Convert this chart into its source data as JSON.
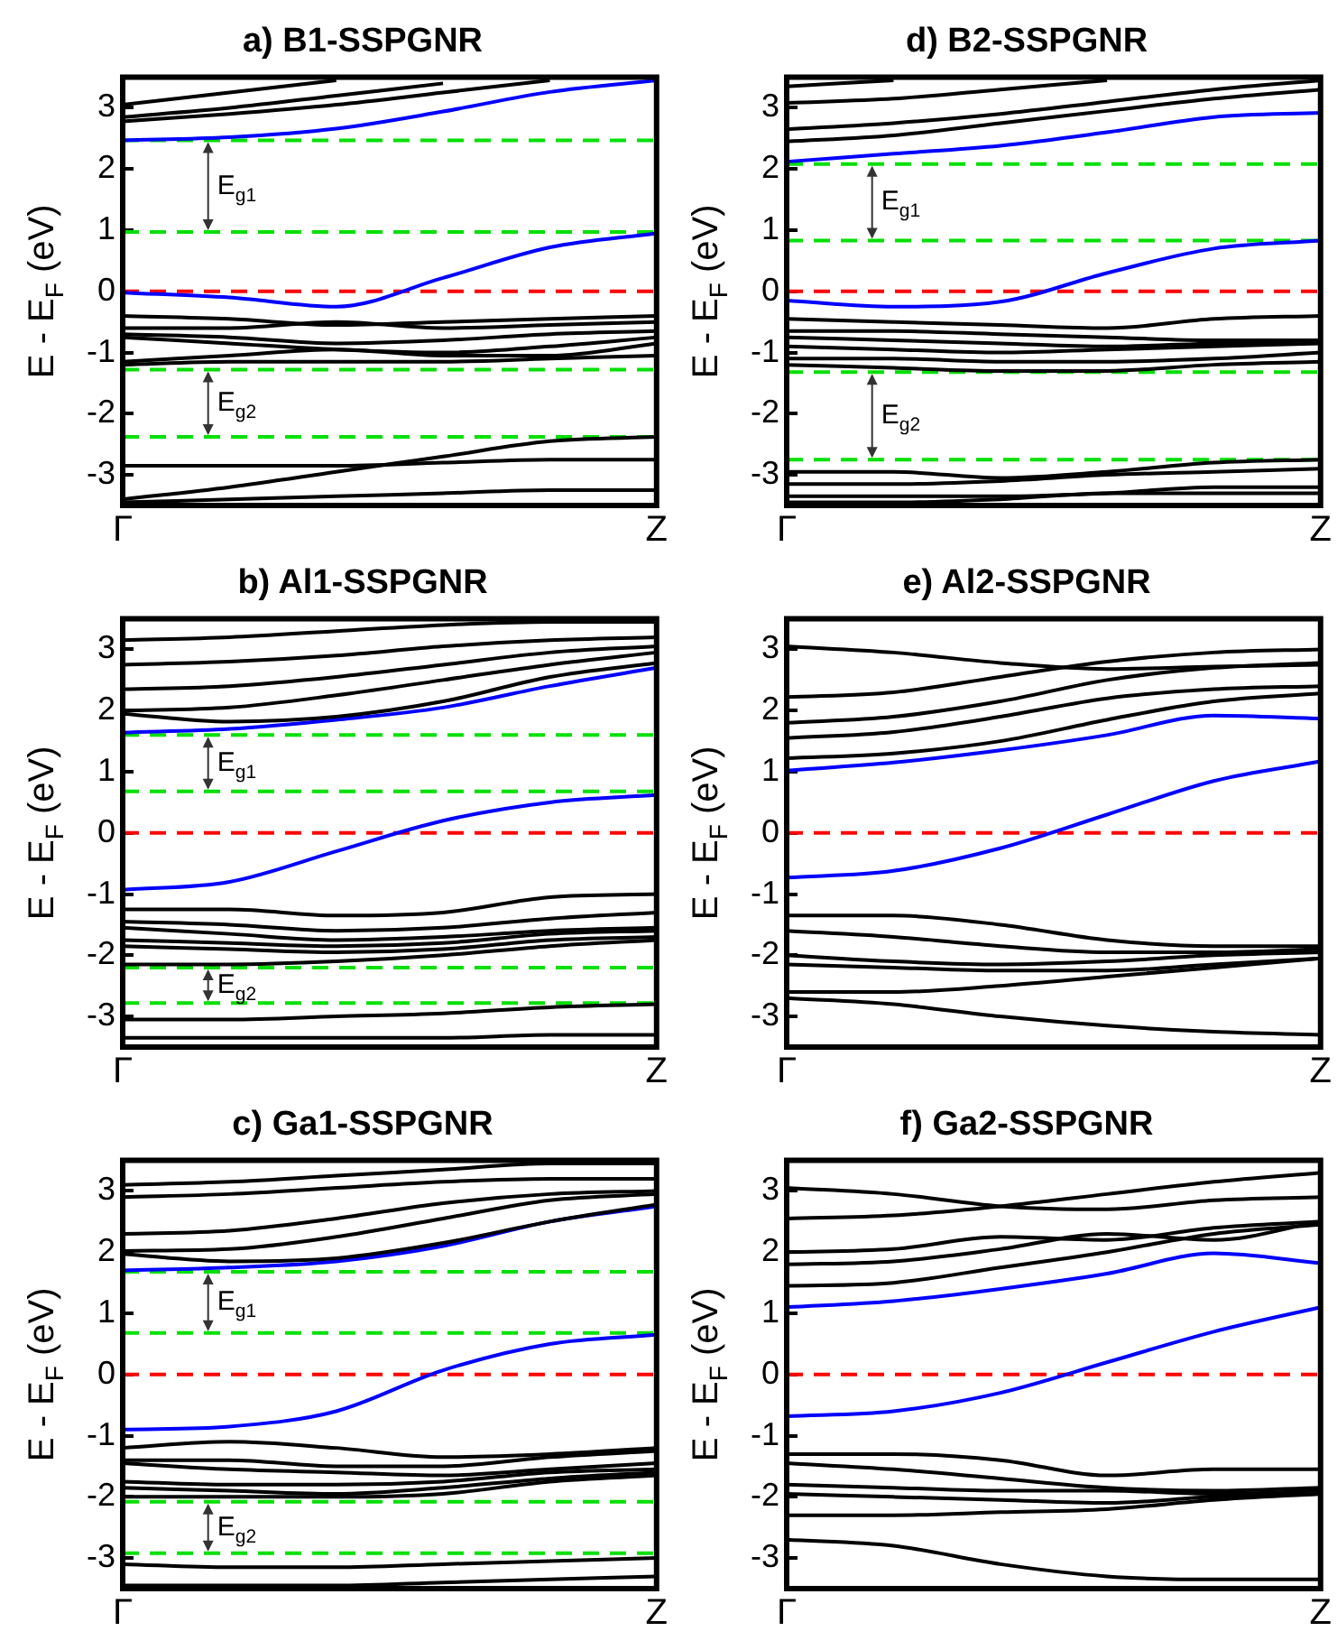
{
  "chart_data": [
    {
      "type": "line",
      "title": "a) B1-SSPGNR",
      "ylabel": "E - E$_{F}$ (eV)",
      "categories": [
        "Γ",
        null,
        null,
        null,
        null,
        "Z"
      ],
      "ylim": [
        -3.5,
        3.5
      ],
      "yticks": [
        -3,
        -2,
        -1,
        0,
        1,
        2,
        3
      ],
      "legend": false,
      "series": [
        {
          "color": "#000000",
          "values": [
            3.05,
            3.25,
            3.45,
            null,
            null,
            null
          ]
        },
        {
          "color": "#000000",
          "values": [
            2.85,
            3.0,
            3.2,
            3.4,
            null,
            null
          ]
        },
        {
          "color": "#000000",
          "values": [
            2.78,
            2.9,
            3.05,
            3.25,
            3.45,
            null
          ]
        },
        {
          "color": "#0000ff",
          "values": [
            2.47,
            2.52,
            2.66,
            2.94,
            3.26,
            3.45
          ]
        },
        {
          "color": "#0000ff",
          "values": [
            -0.02,
            -0.1,
            -0.25,
            0.22,
            0.72,
            0.95
          ]
        },
        {
          "color": "#000000",
          "values": [
            -0.4,
            -0.45,
            -0.55,
            -0.5,
            -0.45,
            -0.4
          ]
        },
        {
          "color": "#000000",
          "values": [
            -0.6,
            -0.6,
            -0.5,
            -0.6,
            -0.55,
            -0.5
          ]
        },
        {
          "color": "#000000",
          "values": [
            -0.7,
            -0.75,
            -0.85,
            -0.8,
            -0.7,
            -0.65
          ]
        },
        {
          "color": "#000000",
          "values": [
            -0.75,
            -0.85,
            -0.95,
            -1.0,
            -0.9,
            -0.75
          ]
        },
        {
          "color": "#000000",
          "values": [
            -1.15,
            -1.05,
            -0.95,
            -1.05,
            -1.05,
            -0.85
          ]
        },
        {
          "color": "#000000",
          "values": [
            -1.2,
            -1.15,
            -1.15,
            -1.15,
            -1.1,
            -1.05
          ]
        },
        {
          "color": "#000000",
          "values": [
            -2.85,
            -2.85,
            -2.85,
            -2.8,
            -2.75,
            -2.75
          ]
        },
        {
          "color": "#000000",
          "values": [
            -3.4,
            -3.2,
            -2.95,
            -2.7,
            -2.45,
            -2.38
          ]
        },
        {
          "color": "#000000",
          "values": [
            -3.45,
            -3.4,
            -3.35,
            -3.3,
            -3.25,
            -3.25
          ]
        }
      ],
      "ref_lines": [
        {
          "axis": "y",
          "value": 0,
          "color": "#ff0000",
          "line_style": "dashed"
        },
        {
          "axis": "y",
          "value": 2.47,
          "color": "#00e000",
          "line_style": "dashed"
        },
        {
          "axis": "y",
          "value": 0.97,
          "color": "#00e000",
          "line_style": "dashed"
        },
        {
          "axis": "y",
          "value": -1.28,
          "color": "#00e000",
          "line_style": "dashed"
        },
        {
          "axis": "y",
          "value": -2.38,
          "color": "#00e000",
          "line_style": "dashed"
        }
      ],
      "annotations": [
        "E$_{g1}$",
        "E$_{g2}$"
      ]
    },
    {
      "type": "line",
      "title": "d) B2-SSPGNR",
      "ylabel": "E - E$_{F}$ (eV)",
      "categories": [
        "Γ",
        null,
        null,
        null,
        null,
        "Z"
      ],
      "ylim": [
        -3.5,
        3.5
      ],
      "yticks": [
        -3,
        -2,
        -1,
        0,
        1,
        2,
        3
      ],
      "legend": false,
      "series": [
        {
          "color": "#000000",
          "values": [
            3.35,
            3.45,
            null,
            null,
            null,
            null
          ]
        },
        {
          "color": "#000000",
          "values": [
            3.08,
            3.15,
            3.3,
            3.45,
            null,
            null
          ]
        },
        {
          "color": "#000000",
          "values": [
            2.65,
            2.75,
            2.9,
            3.1,
            3.3,
            3.45
          ]
        },
        {
          "color": "#000000",
          "values": [
            2.45,
            2.55,
            2.75,
            2.95,
            3.15,
            3.3
          ]
        },
        {
          "color": "#0000ff",
          "values": [
            2.12,
            2.25,
            2.38,
            2.6,
            2.85,
            2.92
          ]
        },
        {
          "color": "#0000ff",
          "values": [
            -0.15,
            -0.25,
            -0.17,
            0.3,
            0.7,
            0.83
          ]
        },
        {
          "color": "#000000",
          "values": [
            -0.45,
            -0.5,
            -0.55,
            -0.6,
            -0.45,
            -0.4
          ]
        },
        {
          "color": "#000000",
          "values": [
            -0.65,
            -0.65,
            -0.7,
            -0.75,
            -0.8,
            -0.8
          ]
        },
        {
          "color": "#000000",
          "values": [
            -0.75,
            -0.8,
            -0.85,
            -0.9,
            -0.85,
            -0.8
          ]
        },
        {
          "color": "#000000",
          "values": [
            -0.9,
            -0.95,
            -1.0,
            -0.95,
            -0.9,
            -0.85
          ]
        },
        {
          "color": "#000000",
          "values": [
            -1.1,
            -1.1,
            -1.15,
            -1.15,
            -1.1,
            -1.0
          ]
        },
        {
          "color": "#000000",
          "values": [
            -1.2,
            -1.25,
            -1.3,
            -1.3,
            -1.2,
            -1.15
          ]
        },
        {
          "color": "#000000",
          "values": [
            -2.95,
            -2.95,
            -3.05,
            -2.95,
            -2.8,
            -2.75
          ]
        },
        {
          "color": "#000000",
          "values": [
            -3.15,
            -3.15,
            -3.1,
            -3.0,
            -2.95,
            -2.9
          ]
        },
        {
          "color": "#000000",
          "values": [
            -3.35,
            -3.35,
            -3.35,
            -3.3,
            -3.2,
            -3.2
          ]
        },
        {
          "color": "#000000",
          "values": [
            -3.45,
            -3.45,
            -3.4,
            -3.3,
            -3.3,
            -3.3
          ]
        }
      ],
      "ref_lines": [
        {
          "axis": "y",
          "value": 0,
          "color": "#ff0000",
          "line_style": "dashed"
        },
        {
          "axis": "y",
          "value": 2.08,
          "color": "#00e000",
          "line_style": "dashed"
        },
        {
          "axis": "y",
          "value": 0.83,
          "color": "#00e000",
          "line_style": "dashed"
        },
        {
          "axis": "y",
          "value": -1.32,
          "color": "#00e000",
          "line_style": "dashed"
        },
        {
          "axis": "y",
          "value": -2.75,
          "color": "#00e000",
          "line_style": "dashed"
        }
      ],
      "annotations": [
        "E$_{g1}$",
        "E$_{g2}$"
      ]
    },
    {
      "type": "line",
      "title": "b) Al1-SSPGNR",
      "ylabel": "E - E$_{F}$ (eV)",
      "categories": [
        "Γ",
        null,
        null,
        null,
        null,
        "Z"
      ],
      "ylim": [
        -3.5,
        3.5
      ],
      "yticks": [
        -3,
        -2,
        -1,
        0,
        1,
        2,
        3
      ],
      "legend": false,
      "series": [
        {
          "color": "#000000",
          "values": [
            3.15,
            3.2,
            3.3,
            3.4,
            3.45,
            3.45
          ]
        },
        {
          "color": "#000000",
          "values": [
            2.75,
            2.8,
            2.9,
            3.05,
            3.15,
            3.2
          ]
        },
        {
          "color": "#000000",
          "values": [
            2.35,
            2.4,
            2.55,
            2.75,
            2.95,
            3.05
          ]
        },
        {
          "color": "#000000",
          "values": [
            2.0,
            2.05,
            2.25,
            2.5,
            2.75,
            2.95
          ]
        },
        {
          "color": "#000000",
          "values": [
            1.95,
            1.82,
            1.9,
            2.15,
            2.55,
            2.78
          ]
        },
        {
          "color": "#0000ff",
          "values": [
            1.64,
            1.7,
            1.85,
            2.05,
            2.4,
            2.7
          ]
        },
        {
          "color": "#0000ff",
          "values": [
            -0.93,
            -0.8,
            -0.3,
            0.2,
            0.5,
            0.62
          ]
        },
        {
          "color": "#000000",
          "values": [
            -1.25,
            -1.25,
            -1.35,
            -1.3,
            -1.05,
            -1.0
          ]
        },
        {
          "color": "#000000",
          "values": [
            -1.45,
            -1.5,
            -1.6,
            -1.55,
            -1.4,
            -1.3
          ]
        },
        {
          "color": "#000000",
          "values": [
            -1.55,
            -1.65,
            -1.75,
            -1.7,
            -1.6,
            -1.55
          ]
        },
        {
          "color": "#000000",
          "values": [
            -1.75,
            -1.8,
            -1.85,
            -1.8,
            -1.65,
            -1.6
          ]
        },
        {
          "color": "#000000",
          "values": [
            -1.85,
            -1.9,
            -1.95,
            -1.9,
            -1.75,
            -1.7
          ]
        },
        {
          "color": "#000000",
          "values": [
            -2.15,
            -2.15,
            -2.1,
            -2.0,
            -1.85,
            -1.75
          ]
        },
        {
          "color": "#000000",
          "values": [
            -3.05,
            -3.05,
            -3.0,
            -2.95,
            -2.85,
            -2.8
          ]
        },
        {
          "color": "#000000",
          "values": [
            -3.35,
            -3.35,
            -3.35,
            -3.35,
            -3.3,
            -3.3
          ]
        }
      ],
      "ref_lines": [
        {
          "axis": "y",
          "value": 0,
          "color": "#ff0000",
          "line_style": "dashed"
        },
        {
          "axis": "y",
          "value": 1.6,
          "color": "#00e000",
          "line_style": "dashed"
        },
        {
          "axis": "y",
          "value": 0.68,
          "color": "#00e000",
          "line_style": "dashed"
        },
        {
          "axis": "y",
          "value": -2.2,
          "color": "#00e000",
          "line_style": "dashed"
        },
        {
          "axis": "y",
          "value": -2.78,
          "color": "#00e000",
          "line_style": "dashed"
        }
      ],
      "annotations": [
        "E$_{g1}$",
        "E$_{g2}$"
      ]
    },
    {
      "type": "line",
      "title": "e) Al2-SSPGNR",
      "ylabel": "E - E$_{F}$ (eV)",
      "categories": [
        "Γ",
        null,
        null,
        null,
        null,
        "Z"
      ],
      "ylim": [
        -3.5,
        3.5
      ],
      "yticks": [
        -3,
        -2,
        -1,
        0,
        1,
        2,
        3
      ],
      "legend": false,
      "series": [
        {
          "color": "#000000",
          "values": [
            3.05,
            2.95,
            2.78,
            2.68,
            2.72,
            2.75
          ]
        },
        {
          "color": "#000000",
          "values": [
            2.22,
            2.3,
            2.55,
            2.8,
            2.95,
            3.0
          ]
        },
        {
          "color": "#000000",
          "values": [
            1.8,
            1.9,
            2.15,
            2.5,
            2.7,
            2.78
          ]
        },
        {
          "color": "#000000",
          "values": [
            1.55,
            1.65,
            1.9,
            2.2,
            2.35,
            2.4
          ]
        },
        {
          "color": "#000000",
          "values": [
            1.22,
            1.3,
            1.5,
            1.85,
            2.15,
            2.28
          ]
        },
        {
          "color": "#0000ff",
          "values": [
            1.02,
            1.15,
            1.35,
            1.6,
            1.92,
            1.87
          ]
        },
        {
          "color": "#0000ff",
          "values": [
            -0.73,
            -0.62,
            -0.25,
            0.3,
            0.85,
            1.17
          ]
        },
        {
          "color": "#000000",
          "values": [
            -1.35,
            -1.35,
            -1.5,
            -1.75,
            -1.85,
            -1.85
          ]
        },
        {
          "color": "#000000",
          "values": [
            -1.6,
            -1.7,
            -1.85,
            -1.95,
            -1.95,
            -1.9
          ]
        },
        {
          "color": "#000000",
          "values": [
            -2.0,
            -2.1,
            -2.15,
            -2.1,
            -2.0,
            -1.95
          ]
        },
        {
          "color": "#000000",
          "values": [
            -2.15,
            -2.2,
            -2.25,
            -2.25,
            -2.15,
            -2.05
          ]
        },
        {
          "color": "#000000",
          "values": [
            -2.6,
            -2.6,
            -2.5,
            -2.35,
            -2.2,
            -2.05
          ]
        },
        {
          "color": "#000000",
          "values": [
            -2.7,
            -2.8,
            -3.0,
            -3.15,
            -3.25,
            -3.3
          ]
        }
      ],
      "ref_lines": [
        {
          "axis": "y",
          "value": 0,
          "color": "#ff0000",
          "line_style": "dashed"
        }
      ]
    },
    {
      "type": "line",
      "title": "c) Ga1-SSPGNR",
      "ylabel": "E - E$_{F}$ (eV)",
      "categories": [
        "Γ",
        null,
        null,
        null,
        null,
        "Z"
      ],
      "ylim": [
        -3.5,
        3.5
      ],
      "yticks": [
        -3,
        -2,
        -1,
        0,
        1,
        2,
        3
      ],
      "legend": false,
      "series": [
        {
          "color": "#000000",
          "values": [
            3.1,
            3.15,
            3.25,
            3.35,
            3.45,
            3.45
          ]
        },
        {
          "color": "#000000",
          "values": [
            2.9,
            2.95,
            3.05,
            3.15,
            3.2,
            3.2
          ]
        },
        {
          "color": "#000000",
          "values": [
            2.3,
            2.35,
            2.55,
            2.8,
            2.95,
            3.0
          ]
        },
        {
          "color": "#000000",
          "values": [
            2.02,
            2.05,
            2.25,
            2.55,
            2.85,
            2.95
          ]
        },
        {
          "color": "#000000",
          "values": [
            1.97,
            1.85,
            1.9,
            2.15,
            2.5,
            2.78
          ]
        },
        {
          "color": "#0000ff",
          "values": [
            1.7,
            1.75,
            1.85,
            2.1,
            2.5,
            2.75
          ]
        },
        {
          "color": "#0000ff",
          "values": [
            -0.9,
            -0.85,
            -0.6,
            0.07,
            0.5,
            0.65
          ]
        },
        {
          "color": "#000000",
          "values": [
            -1.2,
            -1.1,
            -1.2,
            -1.35,
            -1.3,
            -1.2
          ]
        },
        {
          "color": "#000000",
          "values": [
            -1.4,
            -1.4,
            -1.5,
            -1.5,
            -1.35,
            -1.25
          ]
        },
        {
          "color": "#000000",
          "values": [
            -1.45,
            -1.55,
            -1.6,
            -1.65,
            -1.55,
            -1.45
          ]
        },
        {
          "color": "#000000",
          "values": [
            -1.75,
            -1.8,
            -1.8,
            -1.75,
            -1.6,
            -1.55
          ]
        },
        {
          "color": "#000000",
          "values": [
            -1.85,
            -1.9,
            -1.95,
            -1.85,
            -1.7,
            -1.6
          ]
        },
        {
          "color": "#000000",
          "values": [
            -2.0,
            -2.0,
            -2.0,
            -1.95,
            -1.75,
            -1.65
          ]
        },
        {
          "color": "#000000",
          "values": [
            -3.1,
            -3.15,
            -3.15,
            -3.1,
            -3.05,
            -3.0
          ]
        },
        {
          "color": "#000000",
          "values": [
            -3.45,
            -3.45,
            -3.45,
            -3.4,
            -3.35,
            -3.3
          ]
        }
      ],
      "ref_lines": [
        {
          "axis": "y",
          "value": 0,
          "color": "#ff0000",
          "line_style": "dashed"
        },
        {
          "axis": "y",
          "value": 1.68,
          "color": "#00e000",
          "line_style": "dashed"
        },
        {
          "axis": "y",
          "value": 0.68,
          "color": "#00e000",
          "line_style": "dashed"
        },
        {
          "axis": "y",
          "value": -2.08,
          "color": "#00e000",
          "line_style": "dashed"
        },
        {
          "axis": "y",
          "value": -2.92,
          "color": "#00e000",
          "line_style": "dashed"
        }
      ],
      "annotations": [
        "E$_{g1}$",
        "E$_{g2}$"
      ]
    },
    {
      "type": "line",
      "title": "f) Ga2-SSPGNR",
      "ylabel": "E - E$_{F}$ (eV)",
      "categories": [
        "Γ",
        null,
        null,
        null,
        null,
        "Z"
      ],
      "ylim": [
        -3.5,
        3.5
      ],
      "yticks": [
        -3,
        -2,
        -1,
        0,
        1,
        2,
        3
      ],
      "legend": false,
      "series": [
        {
          "color": "#000000",
          "values": [
            3.05,
            2.95,
            2.75,
            2.7,
            2.85,
            2.9
          ]
        },
        {
          "color": "#000000",
          "values": [
            2.55,
            2.6,
            2.75,
            2.95,
            3.15,
            3.3
          ]
        },
        {
          "color": "#000000",
          "values": [
            2.0,
            2.05,
            2.25,
            2.2,
            2.4,
            2.5
          ]
        },
        {
          "color": "#000000",
          "values": [
            1.8,
            1.85,
            2.05,
            2.3,
            2.2,
            2.5
          ]
        },
        {
          "color": "#000000",
          "values": [
            1.45,
            1.5,
            1.75,
            2.0,
            2.3,
            2.45
          ]
        },
        {
          "color": "#0000ff",
          "values": [
            1.1,
            1.2,
            1.4,
            1.65,
            1.98,
            1.82
          ]
        },
        {
          "color": "#0000ff",
          "values": [
            -0.68,
            -0.6,
            -0.3,
            0.2,
            0.7,
            1.1
          ]
        },
        {
          "color": "#000000",
          "values": [
            -1.3,
            -1.3,
            -1.4,
            -1.65,
            -1.55,
            -1.55
          ]
        },
        {
          "color": "#000000",
          "values": [
            -1.45,
            -1.55,
            -1.7,
            -1.85,
            -1.9,
            -1.85
          ]
        },
        {
          "color": "#000000",
          "values": [
            -1.8,
            -1.85,
            -1.9,
            -1.9,
            -1.95,
            -1.9
          ]
        },
        {
          "color": "#000000",
          "values": [
            -1.95,
            -2.0,
            -2.05,
            -2.1,
            -2.0,
            -1.95
          ]
        },
        {
          "color": "#000000",
          "values": [
            -2.3,
            -2.3,
            -2.25,
            -2.2,
            -2.05,
            -1.95
          ]
        },
        {
          "color": "#000000",
          "values": [
            -2.7,
            -2.8,
            -3.1,
            -3.3,
            -3.35,
            -3.35
          ]
        }
      ],
      "ref_lines": [
        {
          "axis": "y",
          "value": 0,
          "color": "#ff0000",
          "line_style": "dashed"
        }
      ]
    }
  ]
}
